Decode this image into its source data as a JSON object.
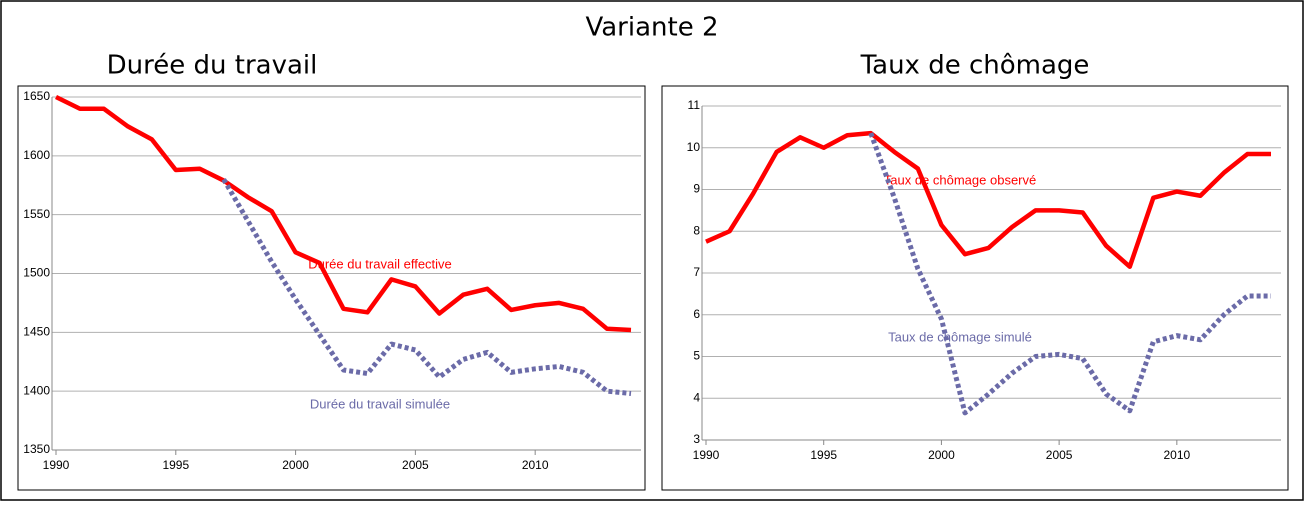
{
  "header": {
    "title": "Variante 2"
  },
  "chart_data": [
    {
      "type": "line",
      "title": "Durée du travail",
      "x": [
        1990,
        1991,
        1992,
        1993,
        1994,
        1995,
        1996,
        1997,
        1998,
        1999,
        2000,
        2001,
        2002,
        2003,
        2004,
        2005,
        2006,
        2007,
        2008,
        2009,
        2010,
        2011,
        2012,
        2013,
        2014
      ],
      "xlim": [
        1990,
        2014
      ],
      "xticks": [
        1990,
        1995,
        2000,
        2005,
        2010
      ],
      "ylim": [
        1350,
        1650
      ],
      "yticks": [
        1350,
        1400,
        1450,
        1500,
        1550,
        1600,
        1650
      ],
      "grid": true,
      "series": [
        {
          "name": "Durée du travail effective",
          "color": "#ff0000",
          "dashed": false,
          "values": [
            1650,
            1640,
            1640,
            1625,
            1614,
            1588,
            1589,
            1579,
            1565,
            1553,
            1518,
            1509,
            1470,
            1467,
            1495,
            1489,
            1466,
            1482,
            1487,
            1469,
            1473,
            1475,
            1470,
            1453,
            1452
          ]
        },
        {
          "name": "Durée du travail simulée",
          "color": "#6b6ba8",
          "dashed": true,
          "values": [
            null,
            null,
            null,
            null,
            null,
            null,
            null,
            1580,
            1545,
            1510,
            1478,
            1448,
            1418,
            1415,
            1440,
            1435,
            1412,
            1427,
            1433,
            1416,
            1419,
            1421,
            1416,
            1400,
            1398
          ]
        }
      ]
    },
    {
      "type": "line",
      "title": "Taux de chômage",
      "x": [
        1990,
        1991,
        1992,
        1993,
        1994,
        1995,
        1996,
        1997,
        1998,
        1999,
        2000,
        2001,
        2002,
        2003,
        2004,
        2005,
        2006,
        2007,
        2008,
        2009,
        2010,
        2011,
        2012,
        2013,
        2014
      ],
      "xlim": [
        1990,
        2014
      ],
      "xticks": [
        1990,
        1995,
        2000,
        2005,
        2010
      ],
      "ylim": [
        3,
        11
      ],
      "yticks": [
        3,
        4,
        5,
        6,
        7,
        8,
        9,
        10,
        11
      ],
      "grid": true,
      "series": [
        {
          "name": "Taux de chômage observé",
          "color": "#ff0000",
          "dashed": false,
          "values": [
            7.75,
            8.0,
            8.9,
            9.9,
            10.25,
            10.0,
            10.3,
            10.35,
            9.9,
            9.5,
            8.15,
            7.45,
            7.6,
            8.1,
            8.5,
            8.5,
            8.45,
            7.65,
            7.15,
            8.8,
            8.95,
            8.85,
            9.4,
            9.85,
            9.85
          ]
        },
        {
          "name": "Taux de chômage simulé",
          "color": "#6b6ba8",
          "dashed": true,
          "values": [
            null,
            null,
            null,
            null,
            null,
            null,
            null,
            10.35,
            8.8,
            7.1,
            5.9,
            3.65,
            4.1,
            4.6,
            5.0,
            5.05,
            4.95,
            4.1,
            3.7,
            5.35,
            5.5,
            5.4,
            6.0,
            6.45,
            6.45
          ]
        }
      ]
    }
  ]
}
